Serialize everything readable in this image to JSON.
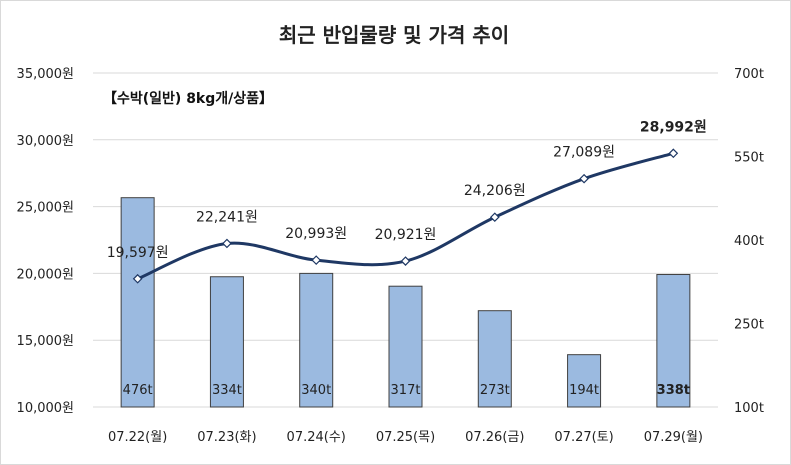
{
  "chart_data": {
    "type": "bar",
    "title": "최근 반입물량 및 가격 추이",
    "subtitle": "【수박(일반) 8kg개/상품】",
    "categories": [
      "07.22(월)",
      "07.23(화)",
      "07.24(수)",
      "07.25(목)",
      "07.26(금)",
      "07.27(토)",
      "07.29(월)"
    ],
    "series": [
      {
        "type": "bar",
        "axis": "right",
        "values": [
          476,
          334,
          340,
          317,
          273,
          194,
          338
        ],
        "labels": [
          "476t",
          "334t",
          "340t",
          "317t",
          "273t",
          "194t",
          "338t"
        ],
        "color": "#9bbae0"
      },
      {
        "type": "line",
        "axis": "left",
        "values": [
          19597,
          22241,
          20993,
          20921,
          24206,
          27089,
          28992
        ],
        "labels": [
          "19,597원",
          "22,241원",
          "20,993원",
          "20,921원",
          "24,206원",
          "27,089원",
          "28,992원"
        ],
        "color": "#1f3864"
      }
    ],
    "left_axis": {
      "ylim": [
        10000,
        35000
      ],
      "ticks": [
        10000,
        15000,
        20000,
        25000,
        30000,
        35000
      ],
      "tick_labels": [
        "10,000원",
        "15,000원",
        "20,000원",
        "25,000원",
        "30,000원",
        "35,000원"
      ]
    },
    "right_axis": {
      "ylim": [
        100,
        700
      ],
      "ticks": [
        100,
        250,
        400,
        550,
        700
      ],
      "tick_labels": [
        "100t",
        "250t",
        "400t",
        "550t",
        "700t"
      ]
    },
    "grid": true,
    "highlight_last": true
  }
}
